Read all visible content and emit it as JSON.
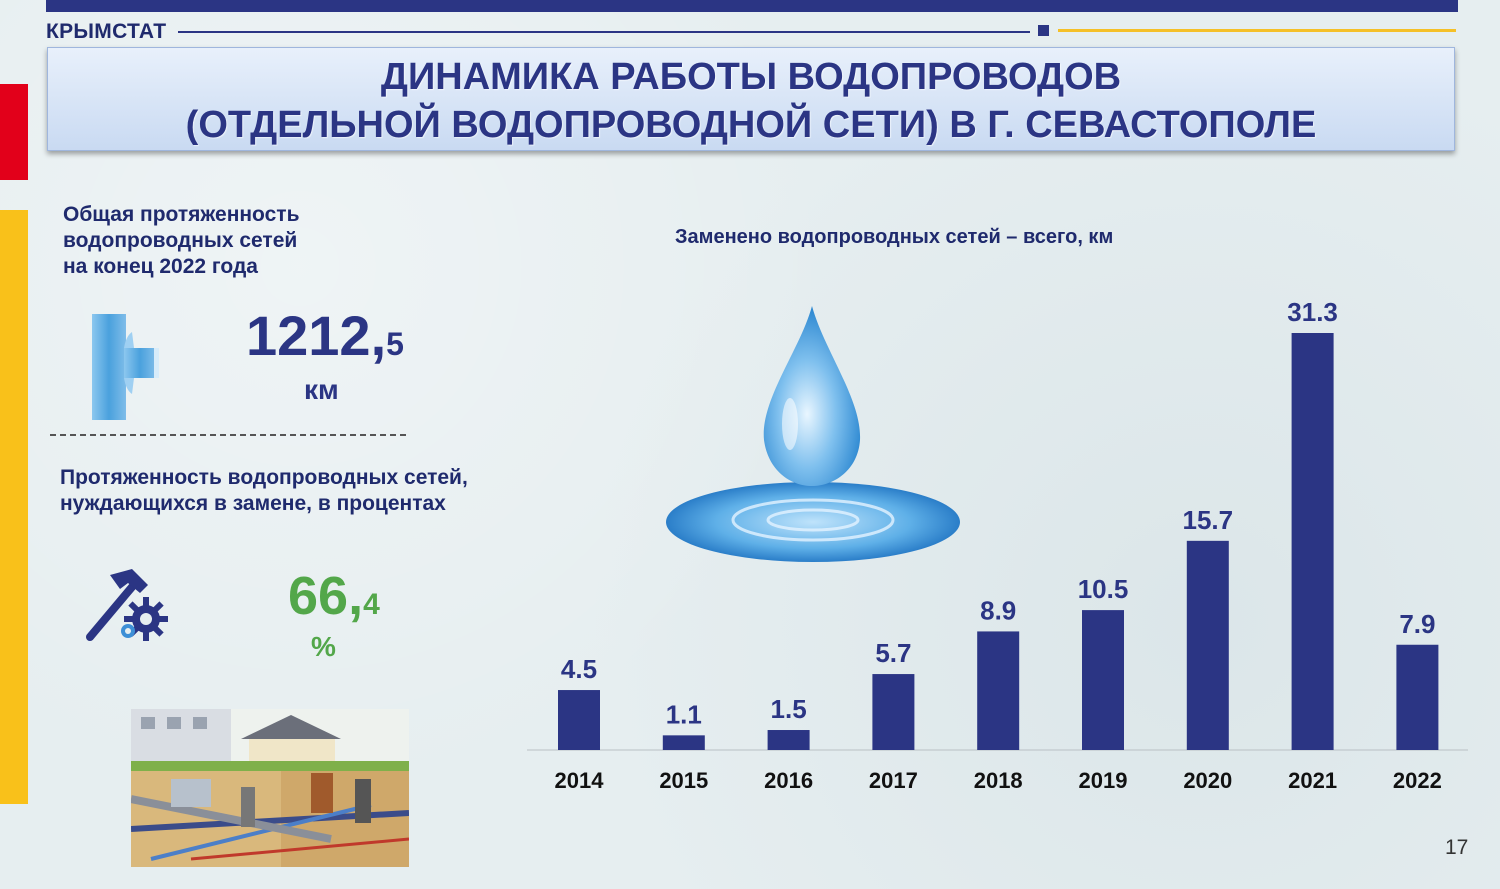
{
  "header": {
    "brand": "КРЫМСТАТ",
    "title_line1": "ДИНАМИКА РАБОТЫ ВОДОПРОВОДОВ",
    "title_line2": "(ОТДЕЛЬНОЙ ВОДОПРОВОДНОЙ СЕТИ) В Г. СЕВАСТОПОЛЕ"
  },
  "left": {
    "total_label_1": "Общая протяженность",
    "total_label_2": "водопроводных сетей",
    "total_label_3": "на конец 2022 года",
    "total_int": "1212,",
    "total_dec": "5",
    "total_unit": "км",
    "need_label_1": "Протяженность водопроводных сетей,",
    "need_label_2": "нуждающихся в замене, в процентах",
    "need_int": "66,",
    "need_dec": "4",
    "need_unit": "%"
  },
  "page_number": "17",
  "colors": {
    "bar": "#2b3584",
    "accent_red": "#e2001a",
    "accent_yellow": "#f9c11a",
    "green": "#53a74a"
  },
  "icons": [
    "pipe-tee-icon",
    "hammer-gear-icon",
    "water-drop-icon",
    "water-network-illustration"
  ],
  "chart_data": {
    "type": "bar",
    "title": "Заменено водопроводных сетей – всего, км",
    "categories": [
      "2014",
      "2015",
      "2016",
      "2017",
      "2018",
      "2019",
      "2020",
      "2021",
      "2022"
    ],
    "values": [
      4.5,
      1.1,
      1.5,
      5.7,
      8.9,
      10.5,
      15.7,
      31.3,
      7.9
    ],
    "value_labels": [
      "4.5",
      "1.1",
      "1.5",
      "5.7",
      "8.9",
      "10.5",
      "15.7",
      "31.3",
      "7.9"
    ],
    "ylim": [
      0,
      31.3
    ],
    "grid": false,
    "legend": "none"
  }
}
